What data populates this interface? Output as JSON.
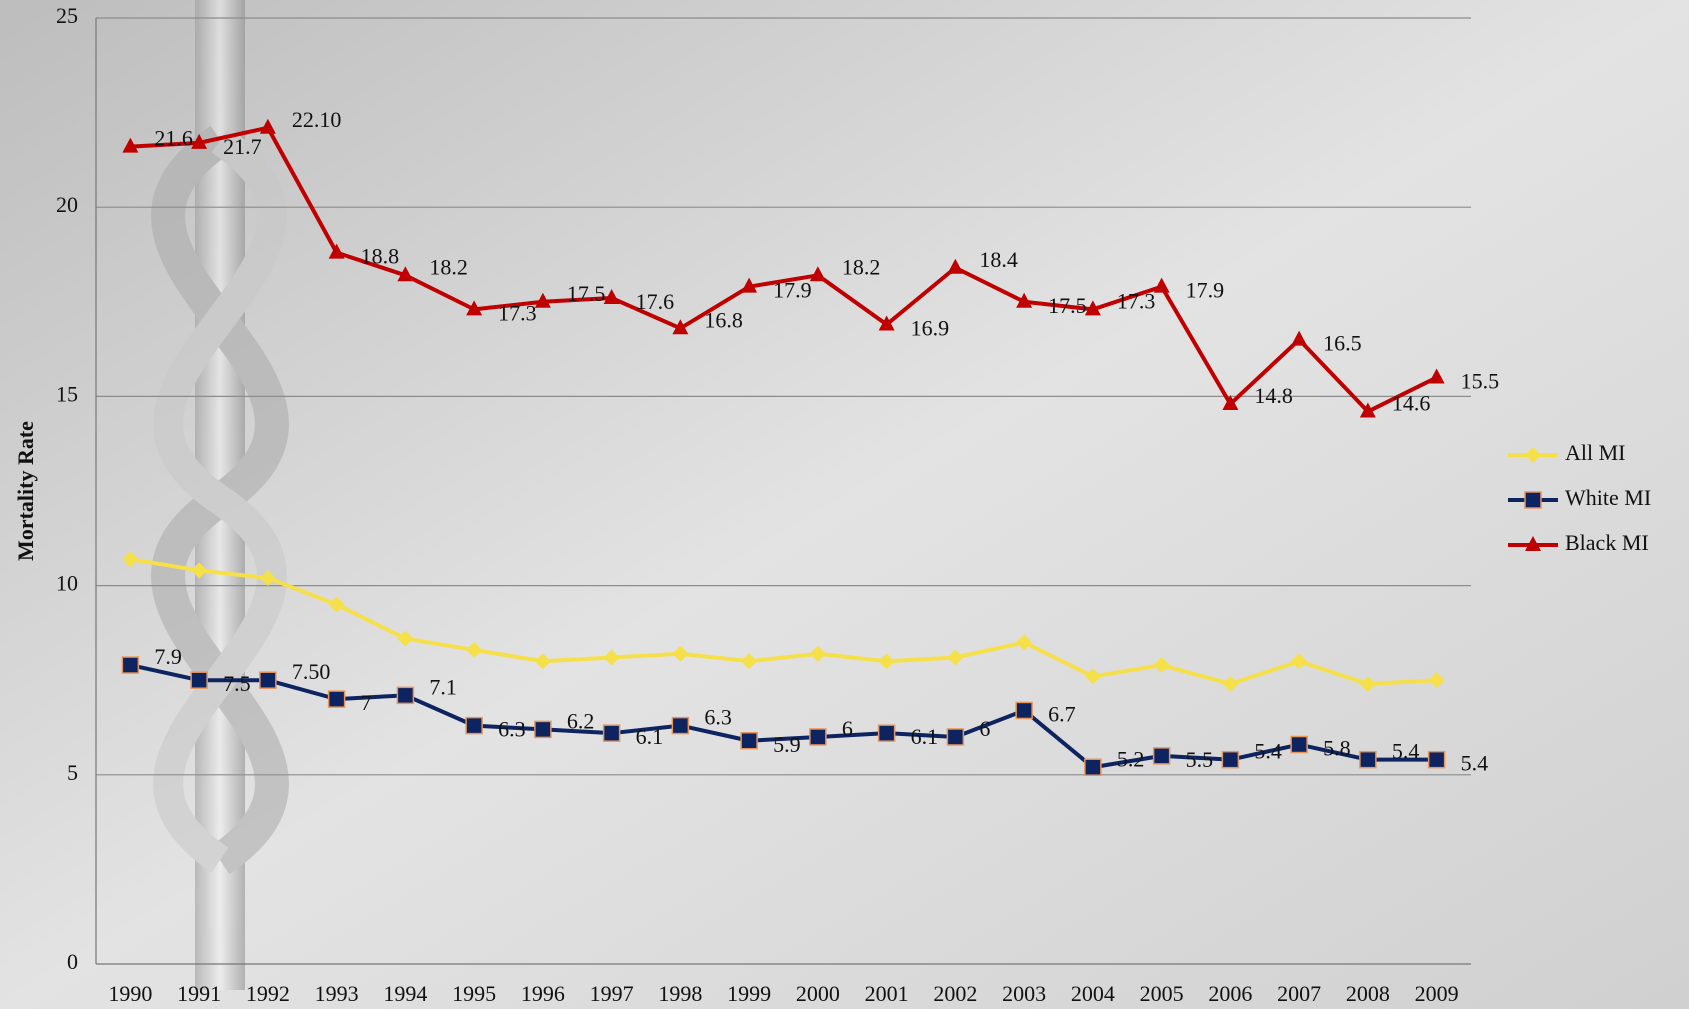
{
  "chart_data": {
    "type": "line",
    "y_label": "Mortality Rate",
    "categories": [
      "1990",
      "1991",
      "1992",
      "1993",
      "1994",
      "1995",
      "1996",
      "1997",
      "1998",
      "1999",
      "2000",
      "2001",
      "2002",
      "2003",
      "2004",
      "2005",
      "2006",
      "2007",
      "2008",
      "2009"
    ],
    "series": [
      {
        "name": "All MI",
        "color": "#f5e04a",
        "marker": "diamond",
        "values": [
          10.7,
          10.4,
          10.2,
          9.5,
          8.6,
          8.3,
          8.0,
          8.1,
          8.2,
          8.0,
          8.2,
          8.0,
          8.1,
          8.5,
          7.6,
          7.9,
          7.4,
          8.0,
          7.4,
          7.5
        ]
      },
      {
        "name": "White MI",
        "color": "#0d2461",
        "marker": "square",
        "values": [
          7.9,
          7.5,
          7.5,
          7,
          7.1,
          6.3,
          6.2,
          6.1,
          6.3,
          5.9,
          6,
          6.1,
          6,
          6.7,
          5.2,
          5.5,
          5.4,
          5.8,
          5.4,
          5.4
        ],
        "value_labels": [
          "7.9",
          "7.5",
          "7.50",
          "7",
          "7.1",
          "6.3",
          "6.2",
          "6.1",
          "6.3",
          "5.9",
          "6",
          "6.1",
          "6",
          "6.7",
          "5.2",
          "5.5",
          "5.4",
          "5.8",
          "5.4",
          "5.4"
        ]
      },
      {
        "name": "Black MI",
        "color": "#c00000",
        "marker": "triangle",
        "values": [
          21.6,
          21.7,
          22.1,
          18.8,
          18.2,
          17.3,
          17.5,
          17.6,
          16.8,
          17.9,
          18.2,
          16.9,
          18.4,
          17.5,
          17.3,
          17.9,
          14.8,
          16.5,
          14.6,
          15.5
        ],
        "value_labels": [
          "21.6",
          "21.7",
          "22.10",
          "18.8",
          "18.2",
          "17.3",
          "17.5",
          "17.6",
          "16.8",
          "17.9",
          "18.2",
          "16.9",
          "18.4",
          "17.5",
          "17.3",
          "17.9",
          "14.8",
          "16.5",
          "14.6",
          "15.5"
        ]
      }
    ],
    "ylim": [
      0,
      25
    ],
    "yticks": [
      0,
      5,
      10,
      15,
      20,
      25
    ],
    "grid": true,
    "legend": "right"
  }
}
